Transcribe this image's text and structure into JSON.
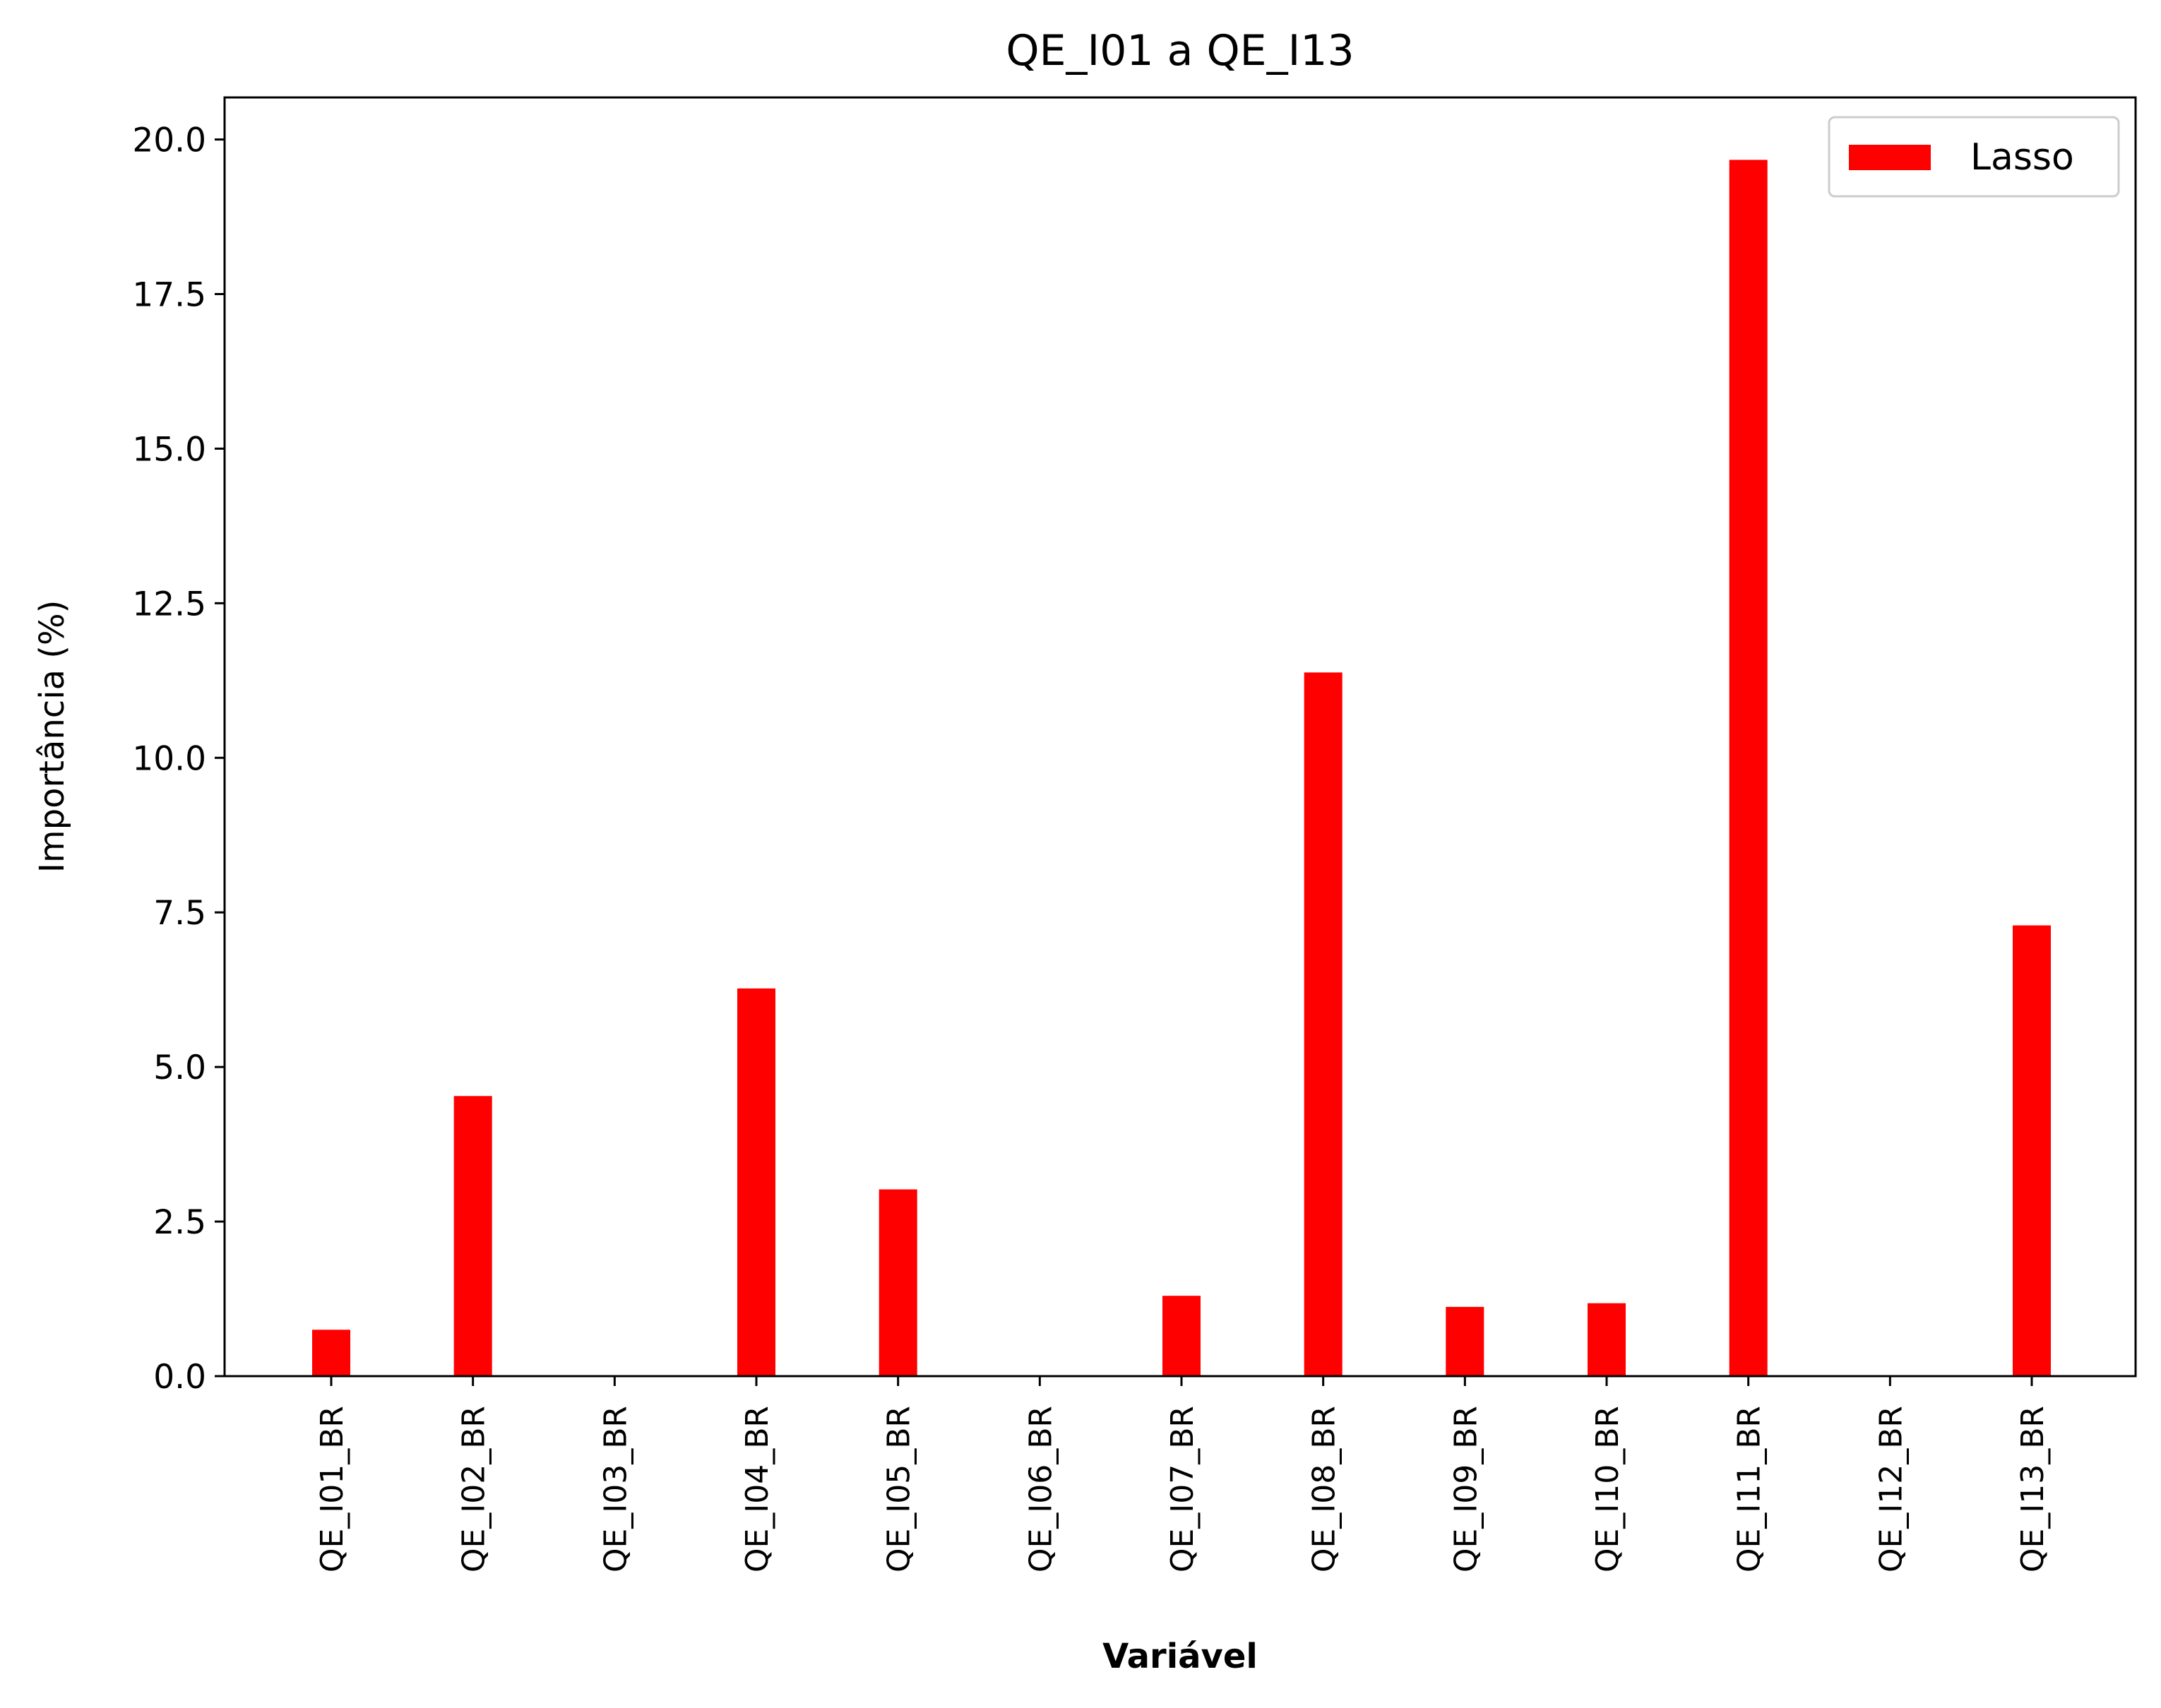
{
  "chart_data": {
    "type": "bar",
    "title": "QE_I01 a QE_I13",
    "xlabel": "Variável",
    "ylabel": "Importância (%)",
    "categories": [
      "QE_I01_BR",
      "QE_I02_BR",
      "QE_I03_BR",
      "QE_I04_BR",
      "QE_I05_BR",
      "QE_I06_BR",
      "QE_I07_BR",
      "QE_I08_BR",
      "QE_I09_BR",
      "QE_I10_BR",
      "QE_I11_BR",
      "QE_I12_BR",
      "QE_I13_BR"
    ],
    "series": [
      {
        "name": "Lasso",
        "color": "#ff0000",
        "values": [
          0.75,
          4.53,
          0.0,
          6.27,
          3.02,
          0.0,
          1.3,
          11.38,
          1.12,
          1.18,
          19.67,
          0.0,
          7.29
        ]
      }
    ],
    "ylim": [
      0,
      20.68
    ],
    "yticks": [
      0.0,
      2.5,
      5.0,
      7.5,
      10.0,
      12.5,
      15.0,
      17.5,
      20.0
    ],
    "ytick_labels": [
      "0.0",
      "2.5",
      "5.0",
      "7.5",
      "10.0",
      "12.5",
      "15.0",
      "17.5",
      "20.0"
    ],
    "grid": false,
    "legend_position": "top-right"
  }
}
